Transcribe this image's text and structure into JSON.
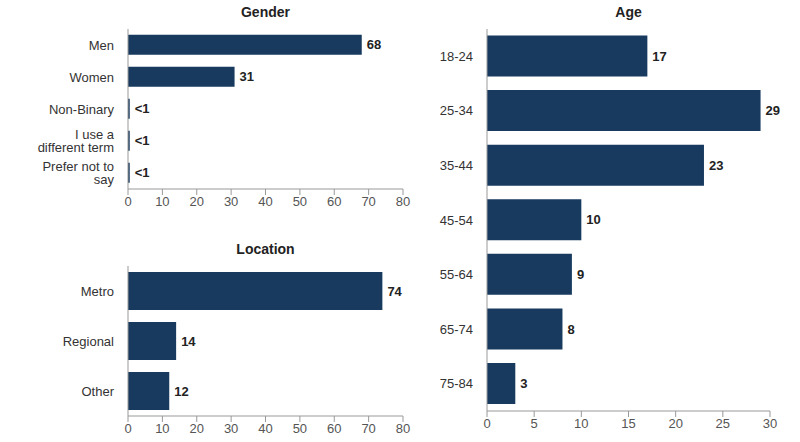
{
  "chart_data": [
    {
      "type": "bar",
      "title": "Gender",
      "orientation": "horizontal",
      "categories": [
        "Men",
        "Women",
        "Non-Binary",
        "I use a different term",
        "Prefer not to say"
      ],
      "values": [
        68,
        31,
        0.5,
        0.5,
        0.5
      ],
      "value_labels": [
        "68",
        "31",
        "<1",
        "<1",
        "<1"
      ],
      "color": "#173a5e",
      "xlim": [
        0,
        80
      ],
      "xticks": [
        0,
        10,
        20,
        30,
        40,
        50,
        60,
        70,
        80
      ],
      "data_labels": true,
      "grid": false
    },
    {
      "type": "bar",
      "title": "Location",
      "orientation": "horizontal",
      "categories": [
        "Metro",
        "Regional",
        "Other"
      ],
      "values": [
        74,
        14,
        12
      ],
      "color": "#173a5e",
      "xlim": [
        0,
        80
      ],
      "xticks": [
        0,
        10,
        20,
        30,
        40,
        50,
        60,
        70,
        80
      ],
      "data_labels": true,
      "grid": false
    },
    {
      "type": "bar",
      "title": "Age",
      "orientation": "horizontal",
      "categories": [
        "18-24",
        "25-34",
        "35-44",
        "45-54",
        "55-64",
        "65-74",
        "75-84"
      ],
      "values": [
        17,
        29,
        23,
        10,
        9,
        8,
        3
      ],
      "color": "#173a5e",
      "xlim": [
        0,
        30
      ],
      "xticks": [
        0,
        5,
        10,
        15,
        20,
        25,
        30
      ],
      "data_labels": true,
      "grid": false
    }
  ]
}
